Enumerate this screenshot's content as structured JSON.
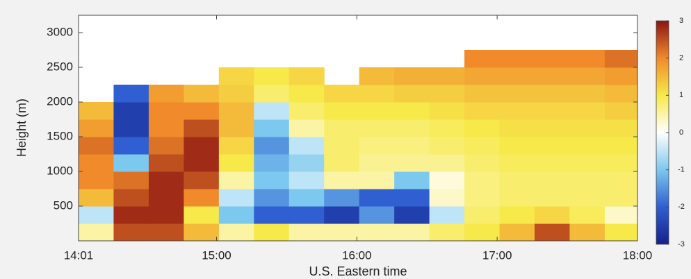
{
  "chart_data": {
    "type": "heatmap",
    "xlabel": "U.S. Eastern time",
    "ylabel": "Height (m)",
    "x_bins": [
      "14:01",
      "14:16",
      "14:31",
      "14:46",
      "15:01",
      "15:16",
      "15:31",
      "15:46",
      "16:01",
      "16:16",
      "16:31",
      "16:46",
      "17:01",
      "17:16",
      "17:31",
      "17:46",
      "18:00"
    ],
    "y_bins": [
      0,
      250,
      500,
      750,
      1000,
      1250,
      1500,
      1750,
      2000,
      2250,
      2500,
      2750,
      3000,
      3250
    ],
    "z": [
      [
        0.5,
        2.5,
        2.5,
        1.5,
        0.5,
        1,
        0.5,
        0.5,
        0.5,
        0.5,
        0.8,
        1,
        1.5,
        2.5,
        1.5,
        1
      ],
      [
        -0.5,
        2.8,
        2.8,
        1,
        -1,
        -2,
        -2,
        -2.5,
        -1.5,
        -2.5,
        -0.5,
        0.8,
        1,
        1.2,
        0.9,
        0.3
      ],
      [
        1.5,
        2.5,
        2.8,
        2,
        -0.5,
        -1.5,
        -1,
        -1.5,
        -2,
        -2,
        0.3,
        0.7,
        0.8,
        0.8,
        0.8,
        0.8
      ],
      [
        2,
        2.2,
        2.8,
        2.5,
        0.5,
        -1,
        -0.5,
        0.5,
        0.5,
        -1,
        0.2,
        0.7,
        0.8,
        0.8,
        0.8,
        0.8
      ],
      [
        2,
        -1,
        2.5,
        2.8,
        1,
        -1.2,
        -0.8,
        0.8,
        0.6,
        0.6,
        0.6,
        0.8,
        0.9,
        0.9,
        0.9,
        0.9
      ],
      [
        2.2,
        -2,
        2.2,
        2.8,
        1.2,
        -1.5,
        -0.5,
        0.8,
        0.7,
        0.7,
        0.8,
        0.9,
        1,
        1,
        1,
        1
      ],
      [
        1.8,
        -2.5,
        2,
        2.5,
        1.5,
        -1,
        0.5,
        0.8,
        0.8,
        0.8,
        0.9,
        1,
        1.1,
        1.1,
        1.1,
        1.1
      ],
      [
        1.5,
        -2.5,
        2,
        2,
        1.5,
        -0.5,
        0.8,
        1,
        1,
        1,
        1.1,
        1.2,
        1.2,
        1.2,
        1.2,
        1.3
      ],
      [
        null,
        -2,
        1.8,
        1.5,
        1.3,
        0.8,
        1,
        1.2,
        1.2,
        1.3,
        1.3,
        1.4,
        1.4,
        1.4,
        1.4,
        1.5
      ],
      [
        null,
        null,
        null,
        null,
        1.2,
        1,
        1.2,
        null,
        1.5,
        1.6,
        1.6,
        1.7,
        1.7,
        1.7,
        1.7,
        1.8
      ],
      [
        null,
        null,
        null,
        null,
        null,
        null,
        null,
        null,
        null,
        null,
        null,
        2,
        2,
        2,
        2,
        2.2
      ],
      [
        null,
        null,
        null,
        null,
        null,
        null,
        null,
        null,
        null,
        null,
        null,
        null,
        null,
        null,
        null,
        null
      ],
      [
        null,
        null,
        null,
        null,
        null,
        null,
        null,
        null,
        null,
        null,
        null,
        null,
        null,
        null,
        null,
        null
      ]
    ],
    "xlim": [
      "14:01",
      "18:00"
    ],
    "xticks": [
      "14:01",
      "15:00",
      "16:00",
      "17:00",
      "18:00"
    ],
    "ylim": [
      0,
      3250
    ],
    "yticks": [
      500,
      1000,
      1500,
      2000,
      2500,
      3000
    ],
    "clim": [
      -3,
      3
    ],
    "cticks": [
      -3,
      -2,
      -1,
      0,
      1,
      2,
      3
    ],
    "colormap": [
      "#14208a",
      "#2f5fd0",
      "#7cc8ee",
      "#ffffff",
      "#f7e94a",
      "#f08a2a",
      "#8c1414"
    ]
  }
}
